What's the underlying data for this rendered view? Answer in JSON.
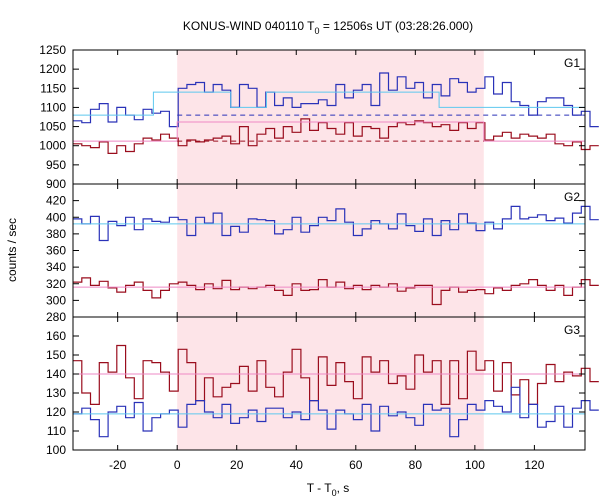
{
  "chart_data": {
    "type": "line",
    "title_prefix": "KONUS-WIND 040110 T",
    "title_sub": "0",
    "title_suffix": " = 12506s UT (03:28:26.000)",
    "xlabel_prefix": "T - T",
    "xlabel_sub": "0",
    "xlabel_suffix": ", s",
    "ylabel": "counts / sec",
    "xlim": [
      -35,
      137
    ],
    "xticks": [
      -20,
      0,
      20,
      40,
      60,
      80,
      100,
      120
    ],
    "bin_width": 2.944,
    "x_start": -35,
    "highlight_interval": [
      0,
      103
    ],
    "colors": {
      "blue": "#2a32b8",
      "red": "#9a0d1d",
      "light_blue": "#5ec8ee",
      "pink": "#ee88c4",
      "highlight": "#fde4e8"
    },
    "panels": [
      {
        "name": "G1",
        "ylim": [
          900,
          1250
        ],
        "yticks": [
          900,
          950,
          1000,
          1050,
          1100,
          1150,
          1200,
          1250
        ],
        "series": [
          {
            "color": "blue",
            "values": [
              1065,
              1060,
              1095,
              1110,
              1062,
              1100,
              1080,
              1068,
              1095,
              1085,
              1090,
              1050,
              1150,
              1160,
              1165,
              1140,
              1160,
              1145,
              1100,
              1160,
              1150,
              1100,
              1140,
              1105,
              1125,
              1100,
              1110,
              1110,
              1120,
              1105,
              1160,
              1125,
              1145,
              1160,
              1105,
              1190,
              1145,
              1180,
              1150,
              1165,
              1125,
              1160,
              1130,
              1175,
              1165,
              1140,
              1150,
              1180,
              1135,
              1165,
              1115,
              1105,
              1080,
              1115,
              1125,
              1125,
              1105,
              1080,
              1090,
              1050
            ]
          },
          {
            "color": "red",
            "values": [
              1005,
              1000,
              995,
              1010,
              980,
              1000,
              985,
              1005,
              1020,
              1015,
              1030,
              1020,
              1000,
              1015,
              1010,
              1015,
              1020,
              1025,
              1005,
              1050,
              1000,
              1030,
              1045,
              1020,
              1050,
              1035,
              1070,
              1040,
              1060,
              1045,
              1030,
              1060,
              1025,
              1050,
              1045,
              1020,
              1050,
              1060,
              1055,
              1065,
              1060,
              1050,
              1055,
              1040,
              1060,
              1045,
              1060,
              1015,
              1025,
              1035,
              1020,
              1030,
              1025,
              1020,
              1030,
              1005,
              1000,
              1010,
              990,
              1000
            ]
          },
          {
            "color": "light_blue",
            "steps": [
              [
                -35,
                1080
              ],
              [
                -8,
                1080
              ],
              [
                -8,
                1140
              ],
              [
                18,
                1140
              ],
              [
                18,
                1100
              ],
              [
                30,
                1100
              ],
              [
                30,
                1140
              ],
              [
                88,
                1140
              ],
              [
                88,
                1100
              ],
              [
                137,
                1100
              ]
            ]
          },
          {
            "color": "pink",
            "steps": [
              [
                -35,
                1012
              ],
              [
                0,
                1012
              ],
              [
                0,
                1062
              ],
              [
                103,
                1062
              ],
              [
                103,
                1012
              ],
              [
                137,
                1012
              ]
            ]
          },
          {
            "color": "blue",
            "dashed": true,
            "steps": [
              [
                0,
                1080
              ],
              [
                137,
                1080
              ]
            ]
          },
          {
            "color": "red",
            "dashed": true,
            "steps": [
              [
                0,
                1012
              ],
              [
                103,
                1012
              ]
            ]
          }
        ]
      },
      {
        "name": "G2",
        "ylim": [
          280,
          440
        ],
        "yticks": [
          280,
          300,
          320,
          340,
          360,
          380,
          400,
          420
        ],
        "series": [
          {
            "color": "blue",
            "values": [
              398,
              392,
              401,
              372,
              395,
              390,
              400,
              385,
              398,
              395,
              394,
              400,
              397,
              378,
              400,
              393,
              405,
              378,
              389,
              382,
              398,
              397,
              396,
              380,
              385,
              400,
              382,
              390,
              400,
              396,
              410,
              394,
              378,
              386,
              396,
              392,
              386,
              404,
              390,
              383,
              398,
              378,
              396,
              385,
              404,
              393,
              384,
              394,
              386,
              398,
              413,
              398,
              400,
              403,
              396,
              399,
              393,
              405,
              413,
              397
            ]
          },
          {
            "color": "red",
            "values": [
              322,
              327,
              318,
              323,
              315,
              310,
              318,
              322,
              312,
              303,
              312,
              320,
              322,
              318,
              313,
              320,
              314,
              324,
              313,
              316,
              314,
              316,
              318,
              312,
              306,
              320,
              312,
              313,
              325,
              316,
              322,
              314,
              318,
              313,
              318,
              316,
              320,
              311,
              315,
              318,
              318,
              295,
              312,
              316,
              310,
              312,
              313,
              308,
              315,
              312,
              318,
              320,
              325,
              318,
              312,
              318,
              306,
              316,
              325,
              318
            ]
          },
          {
            "color": "light_blue",
            "steps": [
              [
                -35,
                392
              ],
              [
                137,
                392
              ]
            ]
          },
          {
            "color": "pink",
            "steps": [
              [
                -35,
                316
              ],
              [
                137,
                316
              ]
            ]
          }
        ]
      },
      {
        "name": "G3",
        "ylim": [
          100,
          170
        ],
        "yticks": [
          100,
          110,
          120,
          130,
          140,
          150,
          160
        ],
        "series": [
          {
            "color": "red",
            "values": [
              147,
              130,
              124,
              146,
              141,
              155,
              138,
              127,
              147,
              146,
              141,
              131,
              153,
              146,
              126,
              138,
              128,
              133,
              135,
              144,
              131,
              147,
              133,
              128,
              141,
              153,
              138,
              126,
              149,
              134,
              146,
              136,
              127,
              149,
              141,
              147,
              135,
              139,
              132,
              150,
              141,
              147,
              124,
              147,
              127,
              152,
              142,
              147,
              131,
              146,
              129,
              137,
              124,
              135,
              145,
              136,
              141,
              139,
              143,
              136
            ]
          },
          {
            "color": "blue",
            "values": [
              119,
              122,
              116,
              107,
              120,
              123,
              117,
              125,
              110,
              117,
              119,
              121,
              112,
              124,
              126,
              120,
              117,
              124,
              114,
              117,
              121,
              115,
              122,
              122,
              117,
              120,
              116,
              126,
              121,
              111,
              121,
              119,
              116,
              124,
              110,
              123,
              118,
              120,
              117,
              113,
              124,
              121,
              122,
              107,
              116,
              124,
              121,
              126,
              123,
              120,
              133,
              117,
              124,
              112,
              115,
              123,
              112,
              122,
              126,
              121
            ]
          },
          {
            "color": "pink",
            "steps": [
              [
                -35,
                140
              ],
              [
                137,
                140
              ]
            ]
          },
          {
            "color": "light_blue",
            "steps": [
              [
                -35,
                119
              ],
              [
                137,
                119
              ]
            ]
          }
        ]
      }
    ]
  }
}
